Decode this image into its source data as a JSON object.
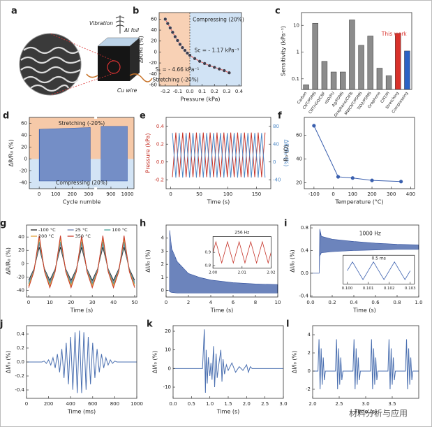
{
  "illustration": {
    "label": "a",
    "texts": [
      "Vibration",
      "Al foil",
      "Cu wire"
    ]
  },
  "watermark": "材料分析与应用",
  "chart_data": [
    {
      "type": "scatter",
      "label": "b",
      "x": [
        -0.2,
        -0.18,
        -0.16,
        -0.14,
        -0.12,
        -0.1,
        -0.08,
        -0.06,
        -0.04,
        -0.02,
        0,
        0.04,
        0.08,
        0.12,
        0.16,
        0.2,
        0.24,
        0.28,
        0.32
      ],
      "values": [
        60,
        52,
        44,
        36,
        28,
        21,
        14,
        8,
        3,
        -2,
        -6,
        -12,
        -17,
        -21,
        -25,
        -28,
        -31,
        -34,
        -38
      ],
      "color": "#3d3d4d",
      "line_color": "#e05a5a",
      "xlim": [
        -0.25,
        0.42
      ],
      "ylim": [
        -62,
        72
      ],
      "xticks": [
        -0.2,
        -0.1,
        {
          "value": 0,
          "label": "0.0"
        },
        0.1,
        0.2,
        0.3,
        0.4
      ],
      "yticks": [
        -60,
        -40,
        -20,
        0,
        20,
        40,
        60
      ],
      "xlabel": "Pressure (kPa)",
      "ylabel": "ΔR/R₀ (%)",
      "background": "split-x",
      "annotations": [
        "Compressing (20%)",
        "Sₛ = - 4.66 kPa⁻¹",
        "Sc = - 1.17 kPa⁻¹",
        "Stretching (-20%)"
      ]
    },
    {
      "type": "bar",
      "label": "c",
      "categories": [
        "Carbon",
        "CNT/PDMS",
        "CNT/rGO/CNF",
        "rGO/PU",
        "Ag/PDMS",
        "Graphene/CNTs",
        "MWCNT/PDMS",
        "TiO2/PDMS",
        "Graphene",
        "CNT/PI",
        "Stretching",
        "Compressing"
      ],
      "values": [
        0.06,
        12,
        0.45,
        0.18,
        0.18,
        16,
        1.8,
        4,
        0.25,
        0.13,
        5,
        1.1
      ],
      "colors": [
        "#8c8c8c",
        "#8c8c8c",
        "#8c8c8c",
        "#8c8c8c",
        "#8c8c8c",
        "#8c8c8c",
        "#8c8c8c",
        "#8c8c8c",
        "#8c8c8c",
        "#8c8c8c",
        "#d9312b",
        "#2a63c5"
      ],
      "log": true,
      "ylim": [
        0.04,
        30
      ],
      "yticks": [
        0.1,
        1,
        10
      ],
      "ylabel": "Sensitivity (kPa⁻¹)",
      "annotations": [
        "This work"
      ]
    },
    {
      "type": "band",
      "label": "d",
      "segments": [
        {
          "xlim": [
            -60,
            330
          ],
          "xticks": [
            0,
            100,
            200,
            300
          ]
        },
        {
          "xlim": [
            820,
            1040
          ],
          "xticks": [
            900,
            1000
          ]
        }
      ],
      "bands": [
        {
          "x": [
            0,
            310
          ],
          "upper": [
            50,
            53
          ],
          "lower": [
            -37,
            -37
          ]
        },
        {
          "x": [
            840,
            1000
          ],
          "upper": [
            55,
            55
          ],
          "lower": [
            -37,
            -37
          ]
        }
      ],
      "color": "#3a5fae",
      "ylim": [
        -50,
        70
      ],
      "yticks": [
        -40,
        -20,
        0,
        20,
        40,
        60
      ],
      "xlabel": "Cycle numble",
      "ylabel": "ΔR/R₀ (%)",
      "background": "split-y",
      "annotations": [
        "Stretching (-20%)",
        "Compressing (20%)"
      ]
    },
    {
      "type": "line",
      "label": "e",
      "x": [
        3,
        9,
        15,
        21,
        27,
        33,
        39,
        45,
        51,
        57,
        63,
        69,
        75,
        81,
        87,
        93,
        99,
        105,
        111,
        117,
        123,
        129,
        135,
        141,
        147,
        153,
        159,
        165
      ],
      "series": [
        {
          "color": "#c6352b",
          "values": [
            -0.17,
            0.33,
            -0.17,
            0.33,
            -0.17,
            0.33,
            -0.17,
            0.33,
            -0.17,
            0.33,
            -0.17,
            0.33,
            -0.17,
            0.33,
            -0.17,
            0.33,
            -0.17,
            0.33,
            -0.17,
            0.33,
            -0.17,
            0.33,
            -0.17,
            0.33,
            -0.17,
            0.33,
            -0.17,
            0.33
          ]
        },
        {
          "color": "#4a86c5",
          "axis": "y2",
          "values": [
            65,
            -35,
            65,
            -35,
            65,
            -35,
            65,
            -35,
            65,
            -35,
            65,
            -35,
            65,
            -35,
            65,
            -35,
            65,
            -35,
            65,
            -35,
            65,
            -35,
            65,
            -35,
            65,
            -35,
            65,
            -35
          ]
        }
      ],
      "xlim": [
        -8,
        175
      ],
      "ylim": [
        -0.3,
        0.5
      ],
      "y2lim": [
        -60,
        100
      ],
      "xticks": [
        0,
        50,
        100,
        150
      ],
      "yticks": [
        -0.2,
        {
          "value": 0,
          "label": "0.0"
        },
        0.2,
        0.4
      ],
      "y2ticks": [
        -40,
        0,
        40,
        80
      ],
      "xlabel": "Time (s)",
      "ylabel": "Pressure (kPa)",
      "y2label": "ΔR/R₀ (%)"
    },
    {
      "type": "line",
      "label": "f",
      "x": [
        -100,
        25,
        100,
        200,
        350
      ],
      "values": [
        68,
        25,
        24,
        22,
        21
      ],
      "color": "#3a5fae",
      "markers": true,
      "xlim": [
        -150,
        420
      ],
      "ylim": [
        15,
        75
      ],
      "xticks": [
        -100,
        0,
        100,
        200,
        300,
        400
      ],
      "yticks": [
        20,
        40,
        60
      ],
      "xlabel": "Temperature (°C)",
      "ylabel": "R₀ (Ω)"
    },
    {
      "type": "line",
      "label": "g",
      "x": [
        0,
        2.5,
        5,
        7.5,
        10,
        12.5,
        15,
        17.5,
        20,
        22.5,
        25,
        27.5,
        30,
        32.5,
        35,
        37.5,
        40,
        42.5,
        45,
        47.5,
        50
      ],
      "series": [
        {
          "name": "-100 °C",
          "color": "#222222",
          "values": [
            -25,
            -8,
            25,
            -8,
            -25,
            -8,
            25,
            -8,
            -25,
            -8,
            25,
            -8,
            -25,
            -8,
            25,
            -8,
            -25,
            -8,
            25,
            -8,
            -25
          ]
        },
        {
          "name": "25 °C",
          "color": "#6b7fb0",
          "values": [
            -28,
            -9,
            30,
            -9,
            -28,
            -9,
            30,
            -9,
            -28,
            -9,
            30,
            -9,
            -28,
            -9,
            30,
            -9,
            -28,
            -9,
            30,
            -9,
            -28
          ]
        },
        {
          "name": "100 °C",
          "color": "#4aa39a",
          "values": [
            -30,
            -10,
            33,
            -10,
            -30,
            -10,
            33,
            -10,
            -30,
            -10,
            33,
            -10,
            -30,
            -10,
            33,
            -10,
            -30,
            -10,
            33,
            -10,
            -30
          ]
        },
        {
          "name": "200 °C",
          "color": "#e3a03a",
          "values": [
            -33,
            -11,
            38,
            -11,
            -33,
            -11,
            38,
            -11,
            -33,
            -11,
            38,
            -11,
            -33,
            -11,
            38,
            -11,
            -33,
            -11,
            38,
            -11,
            -33
          ]
        },
        {
          "name": "350 °C",
          "color": "#c93a2a",
          "values": [
            -36,
            -12,
            42,
            -12,
            -36,
            -12,
            42,
            -12,
            -36,
            -12,
            42,
            -12,
            -36,
            -12,
            42,
            -12,
            -36,
            -12,
            42,
            -12,
            -36
          ]
        }
      ],
      "xlim": [
        -1,
        51
      ],
      "ylim": [
        -50,
        58
      ],
      "xticks": [
        0,
        10,
        20,
        30,
        40,
        50
      ],
      "yticks": [
        -40,
        -20,
        0,
        20,
        40
      ],
      "xlabel": "Time (s)",
      "ylabel": "ΔR/R₀ (%)"
    },
    {
      "type": "band",
      "label": "h",
      "bands": [
        {
          "x": [
            0,
            0.3,
            0.32,
            0.5,
            1,
            2,
            3,
            4,
            6,
            8,
            10
          ],
          "upper": [
            0,
            0,
            4.6,
            3.2,
            2.2,
            1.3,
            1,
            0.8,
            0.6,
            0.5,
            0.45
          ],
          "lower": [
            0,
            0,
            -0.1,
            -0.15,
            -0.2,
            -0.2,
            -0.2,
            -0.2,
            -0.2,
            -0.2,
            -0.2
          ]
        }
      ],
      "color": "#2f4f9e",
      "xlim": [
        0,
        10
      ],
      "ylim": [
        -0.5,
        5
      ],
      "xticks": [
        0,
        2,
        4,
        6,
        8,
        10
      ],
      "yticks": [
        0,
        1,
        2,
        3,
        4
      ],
      "xlabel": "Time (s)",
      "ylabel": "ΔI/I₀ (%)",
      "inset": {
        "type": "line",
        "x": [
          2,
          2.001,
          2.002,
          2.003,
          2.004,
          2.005,
          2.006,
          2.007,
          2.008,
          2.009,
          2.01,
          2.011,
          2.012,
          2.013,
          2.014,
          2.015,
          2.016,
          2.017,
          2.018,
          2.019,
          2.02
        ],
        "values": [
          0.9,
          0.98,
          0.9,
          0.82,
          0.9,
          0.98,
          0.9,
          0.82,
          0.9,
          0.98,
          0.9,
          0.82,
          0.9,
          0.98,
          0.9,
          0.82,
          0.9,
          0.98,
          0.9,
          0.82,
          0.9
        ],
        "color": "#c6352b",
        "xlim": [
          2,
          2.02
        ],
        "ylim": [
          0.78,
          1.02
        ],
        "xticks": [
          {
            "value": 2,
            "label": "2.00"
          },
          {
            "value": 2.01,
            "label": "2.01"
          },
          {
            "value": 2.02,
            "label": "2.02"
          }
        ],
        "yticks": [
          0.8,
          0.9
        ],
        "annotations": [
          "256 Hz"
        ]
      }
    },
    {
      "type": "band",
      "label": "i",
      "bands": [
        {
          "x": [
            0,
            0.08,
            0.085,
            0.1,
            0.2,
            0.4,
            0.6,
            0.8,
            1
          ],
          "upper": [
            0,
            0,
            0.78,
            0.65,
            0.6,
            0.56,
            0.53,
            0.51,
            0.5
          ],
          "lower": [
            0,
            0,
            0.3,
            0.36,
            0.38,
            0.4,
            0.41,
            0.42,
            0.42
          ]
        }
      ],
      "color": "#2f4f9e",
      "xlim": [
        0,
        1
      ],
      "ylim": [
        -0.42,
        0.85
      ],
      "xticks": [
        {
          "value": 0,
          "label": "0.0"
        },
        0.2,
        0.4,
        0.6,
        0.8,
        {
          "value": 1,
          "label": "1.0"
        }
      ],
      "yticks": [
        -0.4,
        {
          "value": 0,
          "label": "0.0"
        },
        0.4,
        0.8
      ],
      "xlabel": "Time (s)",
      "ylabel": "ΔI/I₀ (%)",
      "annotations": [
        "1000 Hz"
      ],
      "inset": {
        "type": "line",
        "x": [
          0.1,
          0.10025,
          0.1005,
          0.10075,
          0.101,
          0.10125,
          0.1015,
          0.10175,
          0.102,
          0.10225,
          0.1025,
          0.10275,
          0.103
        ],
        "values": [
          0.5,
          0.58,
          0.5,
          0.42,
          0.5,
          0.58,
          0.5,
          0.42,
          0.5,
          0.58,
          0.5,
          0.42,
          0.5
        ],
        "color": "#3a5fae",
        "xlim": [
          0.0998,
          0.1032
        ],
        "ylim": [
          0.38,
          0.64
        ],
        "xticks": [
          {
            "value": 0.1,
            "label": "0.100"
          },
          0.101,
          0.102,
          0.103
        ],
        "annotations": [
          "0.5 ms"
        ]
      }
    },
    {
      "type": "line",
      "label": "j",
      "x": [
        0,
        140,
        160,
        180,
        200,
        220,
        240,
        260,
        280,
        300,
        320,
        340,
        360,
        380,
        400,
        420,
        440,
        460,
        480,
        500,
        520,
        540,
        560,
        580,
        600,
        620,
        640,
        660,
        680,
        700,
        720,
        740,
        760,
        780,
        800,
        820,
        1000
      ],
      "values": [
        0,
        0,
        0.013,
        -0.02,
        0.03,
        -0.043,
        0.061,
        -0.085,
        0.113,
        -0.147,
        0.186,
        -0.228,
        0.274,
        -0.318,
        0.36,
        -0.397,
        0.426,
        -0.444,
        0.45,
        -0.444,
        0.426,
        -0.397,
        0.36,
        -0.318,
        0.274,
        -0.228,
        0.186,
        -0.147,
        0.113,
        -0.085,
        0.061,
        -0.043,
        0.03,
        -0.02,
        0.013,
        0,
        0
      ],
      "color": "#4a6fb0",
      "xlim": [
        0,
        1000
      ],
      "ylim": [
        -0.52,
        0.52
      ],
      "xticks": [
        0,
        200,
        400,
        600,
        800,
        1000
      ],
      "yticks": [
        -0.4,
        -0.2,
        {
          "value": 0,
          "label": "0.0"
        },
        0.2,
        0.4
      ],
      "xlabel": "Time (ms)",
      "ylabel": "ΔI/I₀ (%)"
    },
    {
      "type": "line",
      "label": "k",
      "x": [
        0,
        0.8,
        0.85,
        0.88,
        0.9,
        0.93,
        0.96,
        1,
        1.03,
        1.06,
        1.1,
        1.13,
        1.17,
        1.2,
        1.25,
        1.3,
        1.33,
        1.36,
        1.4,
        1.45,
        1.5,
        1.6,
        1.7,
        1.8,
        1.9,
        2,
        2.05,
        2.1,
        2.15,
        3
      ],
      "values": [
        0,
        0,
        21,
        -13,
        10,
        -8,
        6,
        -4,
        3,
        -6,
        12,
        -10,
        8,
        -5,
        3,
        10,
        -7,
        5,
        -3,
        2,
        -1,
        3,
        -2,
        1,
        -1,
        2,
        -2,
        1,
        0,
        0
      ],
      "color": "#4a6fb0",
      "xlim": [
        0,
        3
      ],
      "ylim": [
        -16,
        23
      ],
      "xticks": [
        {
          "value": 0,
          "label": "0.0"
        },
        0.5,
        {
          "value": 1,
          "label": "1.0"
        },
        1.5,
        {
          "value": 2,
          "label": "2.0"
        },
        2.5,
        {
          "value": 3,
          "label": "3.0"
        }
      ],
      "yticks": [
        -10,
        0,
        10,
        20
      ],
      "xlabel": "Time (s)",
      "ylabel": "ΔI/I₀ (%)"
    },
    {
      "type": "line",
      "label": "l",
      "x": [
        2,
        2.1,
        2.12,
        2.14,
        2.16,
        2.18,
        2.2,
        2.22,
        2.24,
        2.43,
        2.45,
        2.47,
        2.49,
        2.51,
        2.53,
        2.55,
        2.57,
        2.76,
        2.78,
        2.8,
        2.82,
        2.84,
        2.86,
        2.88,
        2.9,
        3.09,
        3.11,
        3.13,
        3.15,
        3.17,
        3.19,
        3.21,
        3.23,
        3.42,
        3.44,
        3.46,
        3.48,
        3.5,
        3.52,
        3.54,
        3.56,
        3.75,
        3.77,
        3.79,
        3.81,
        3.83,
        3.85,
        3.87,
        3.89,
        4
      ],
      "values": [
        0,
        0,
        3.5,
        -2,
        2.5,
        -1.5,
        1.5,
        -1,
        0,
        0,
        3.5,
        -2,
        2.5,
        -1.5,
        1.5,
        -1,
        0,
        0,
        3.5,
        -2,
        2.5,
        -1.5,
        1.5,
        -1,
        0,
        0,
        3.5,
        -2,
        2.5,
        -1.5,
        1.5,
        -1,
        0,
        0,
        3.5,
        -2,
        2.5,
        -1.5,
        1.5,
        -1,
        0,
        0,
        3.5,
        -2,
        2.5,
        -1.5,
        1.5,
        -1,
        0,
        0
      ],
      "color": "#4a6fb0",
      "xlim": [
        2,
        4
      ],
      "ylim": [
        -3,
        5
      ],
      "xticks": [
        {
          "value": 2,
          "label": "2.0"
        },
        2.5,
        {
          "value": 3,
          "label": "3.0"
        },
        3.5
      ],
      "yticks": [
        -2,
        0,
        2,
        4
      ],
      "xlabel": "Time (s)",
      "ylabel": "ΔI/I₀ (%)"
    }
  ]
}
